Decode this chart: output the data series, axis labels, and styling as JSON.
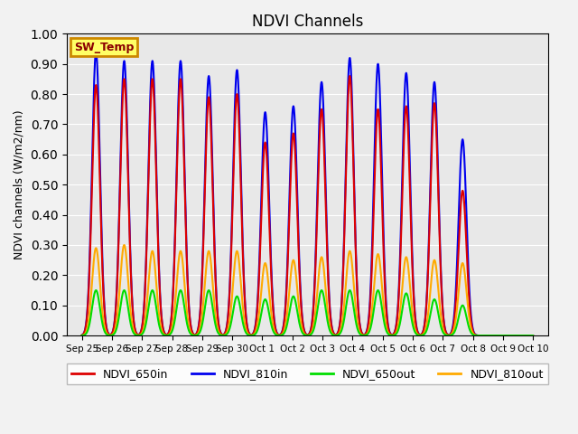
{
  "title": "NDVI Channels",
  "ylabel": "NDVI channels (W/m2/nm)",
  "ylim": [
    0.0,
    1.0
  ],
  "annotation_text": "SW_Temp",
  "plot_bg_color": "#e8e8e8",
  "fig_bg_color": "#f2f2f2",
  "line_colors": {
    "NDVI_650in": "#dd0000",
    "NDVI_810in": "#0000ee",
    "NDVI_650out": "#00dd00",
    "NDVI_810out": "#ffaa00"
  },
  "peak_heights": {
    "NDVI_810in": [
      0.94,
      0.91,
      0.91,
      0.91,
      0.86,
      0.88,
      0.74,
      0.76,
      0.84,
      0.92,
      0.9,
      0.87,
      0.84,
      0.65,
      0.0,
      0.0
    ],
    "NDVI_650in": [
      0.83,
      0.85,
      0.85,
      0.85,
      0.79,
      0.8,
      0.64,
      0.67,
      0.75,
      0.86,
      0.75,
      0.76,
      0.77,
      0.48,
      0.0,
      0.0
    ],
    "NDVI_810out": [
      0.29,
      0.3,
      0.28,
      0.28,
      0.28,
      0.28,
      0.24,
      0.25,
      0.26,
      0.28,
      0.27,
      0.26,
      0.25,
      0.24,
      0.0,
      0.0
    ],
    "NDVI_650out": [
      0.15,
      0.15,
      0.15,
      0.15,
      0.15,
      0.13,
      0.12,
      0.13,
      0.15,
      0.15,
      0.15,
      0.14,
      0.12,
      0.1,
      0.0,
      0.0
    ]
  },
  "num_days": 16,
  "xtick_labels": [
    "Sep 25",
    "Sep 26",
    "Sep 27",
    "Sep 28",
    "Sep 29",
    "Sep 30",
    "Oct 1",
    "Oct 2",
    "Oct 3",
    "Oct 4",
    "Oct 5",
    "Oct 6",
    "Oct 7",
    "Oct 8",
    "Oct 9",
    "Oct 10"
  ]
}
